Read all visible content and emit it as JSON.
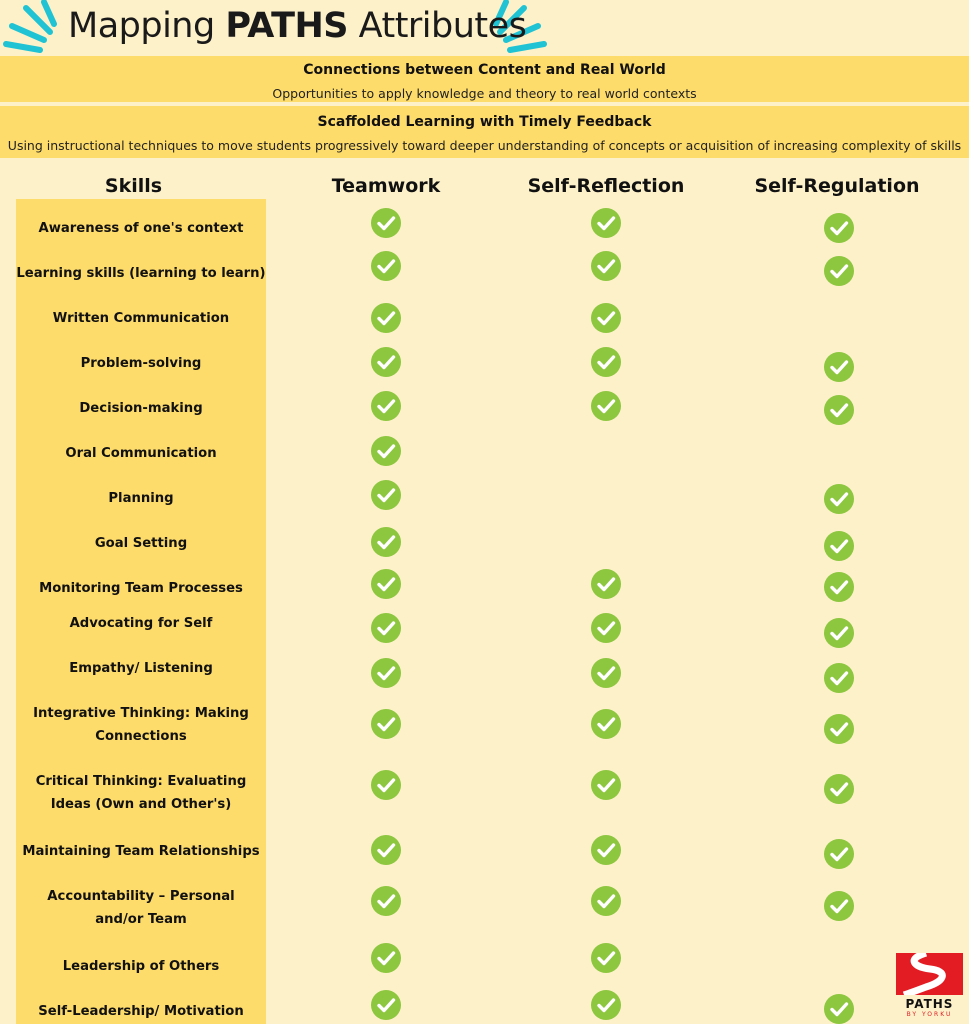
{
  "title": {
    "prefix": "Mapping ",
    "bold": "PATHS",
    "suffix": " Attributes"
  },
  "bands": [
    {
      "heading": "Connections between Content and Real World",
      "text": "Opportunities to apply knowledge and theory to real world contexts"
    },
    {
      "heading": "Scaffolded Learning with Timely Feedback",
      "text": "Using instructional techniques to move students progressively toward deeper understanding of concepts or acquisition of increasing complexity of skills"
    }
  ],
  "columns": [
    "Skills",
    "Teamwork",
    "Self-Reflection",
    "Self-Regulation"
  ],
  "icon": "check-circle-icon",
  "check_color": "#8dc63f",
  "accent_color": "#fedc6b",
  "logo": {
    "name": "PATHS",
    "sub": "BY YORKU"
  },
  "rows": [
    {
      "skill": "Awareness of one's context",
      "teamwork": true,
      "self_reflection": true,
      "self_regulation": true
    },
    {
      "skill": "Learning skills (learning to learn)",
      "teamwork": true,
      "self_reflection": true,
      "self_regulation": true
    },
    {
      "skill": "Written Communication",
      "teamwork": true,
      "self_reflection": true,
      "self_regulation": false
    },
    {
      "skill": "Problem-solving",
      "teamwork": true,
      "self_reflection": true,
      "self_regulation": true
    },
    {
      "skill": "Decision-making",
      "teamwork": true,
      "self_reflection": true,
      "self_regulation": true
    },
    {
      "skill": "Oral Communication",
      "teamwork": true,
      "self_reflection": false,
      "self_regulation": false
    },
    {
      "skill": "Planning",
      "teamwork": true,
      "self_reflection": false,
      "self_regulation": true
    },
    {
      "skill": "Goal Setting",
      "teamwork": true,
      "self_reflection": false,
      "self_regulation": true
    },
    {
      "skill": "Monitoring Team Processes",
      "teamwork": true,
      "self_reflection": true,
      "self_regulation": true
    },
    {
      "skill": "Advocating for Self",
      "teamwork": true,
      "self_reflection": true,
      "self_regulation": true
    },
    {
      "skill": "Empathy/ Listening",
      "teamwork": true,
      "self_reflection": true,
      "self_regulation": true
    },
    {
      "skill": "Integrative Thinking: Making Connections",
      "teamwork": true,
      "self_reflection": true,
      "self_regulation": true
    },
    {
      "skill": "Critical Thinking: Evaluating Ideas (Own and Other's)",
      "teamwork": true,
      "self_reflection": true,
      "self_regulation": true
    },
    {
      "skill": "Maintaining Team Relationships",
      "teamwork": true,
      "self_reflection": true,
      "self_regulation": true
    },
    {
      "skill": "Accountability – Personal and/or Team",
      "teamwork": true,
      "self_reflection": true,
      "self_regulation": true
    },
    {
      "skill": "Leadership of Others",
      "teamwork": true,
      "self_reflection": true,
      "self_regulation": false
    },
    {
      "skill": "Self-Leadership/ Motivation",
      "teamwork": true,
      "self_reflection": true,
      "self_regulation": true
    }
  ]
}
